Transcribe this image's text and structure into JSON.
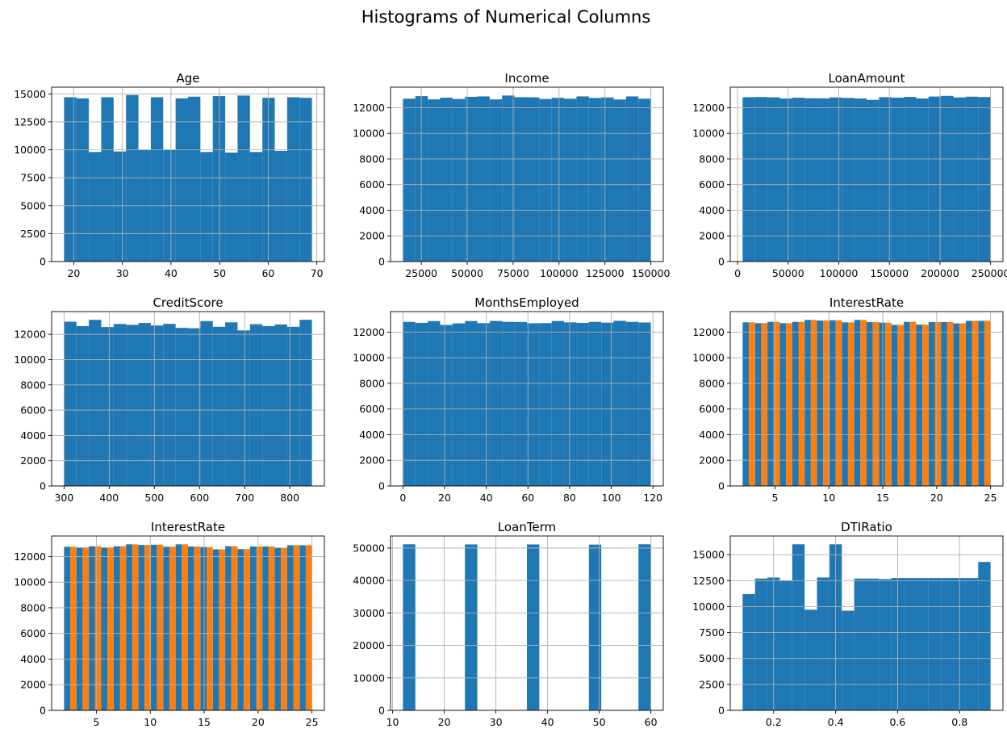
{
  "figure": {
    "title": "Histograms of Numerical Columns"
  },
  "colors": {
    "blue": "#1f77b4",
    "orange": "#ff7f0e",
    "grid": "#b0b0b0"
  },
  "chart_data": [
    {
      "type": "bar",
      "title": "Age",
      "xlim": [
        15.45,
        71.55
      ],
      "ylim": [
        0,
        15600
      ],
      "xticks": [
        20,
        30,
        40,
        50,
        60,
        70
      ],
      "yticks": [
        0,
        2500,
        5000,
        7500,
        10000,
        12500,
        15000
      ],
      "grid": true,
      "series": [
        {
          "color": "#1f77b4",
          "bar_width": 2.55,
          "x": [
            18,
            20.55,
            23.1,
            25.65,
            28.2,
            30.75,
            33.3,
            35.85,
            38.4,
            40.95,
            43.5,
            46.05,
            48.6,
            51.15,
            53.7,
            56.25,
            58.8,
            61.35,
            63.9,
            66.45
          ],
          "values": [
            14700,
            14600,
            9800,
            14700,
            9850,
            14900,
            10000,
            14700,
            10000,
            14600,
            14750,
            9800,
            14800,
            9750,
            14850,
            9800,
            14650,
            9900,
            14700,
            14650
          ]
        }
      ]
    },
    {
      "type": "bar",
      "title": "Income",
      "xlim": [
        8250,
        156750
      ],
      "ylim": [
        0,
        13600
      ],
      "xticks": [
        25000,
        50000,
        75000,
        100000,
        125000,
        150000
      ],
      "yticks": [
        0,
        2000,
        4000,
        6000,
        8000,
        10000,
        12000
      ],
      "grid": true,
      "series": [
        {
          "color": "#1f77b4",
          "bar_width": 6750,
          "x": [
            15000,
            21750,
            28500,
            35250,
            42000,
            48750,
            55500,
            62250,
            69000,
            75750,
            82500,
            89250,
            96000,
            102750,
            109500,
            116250,
            123000,
            129750,
            136500,
            143250
          ],
          "values": [
            12700,
            12900,
            12650,
            12780,
            12680,
            12850,
            12880,
            12650,
            12950,
            12820,
            12810,
            12680,
            12770,
            12700,
            12880,
            12760,
            12800,
            12640,
            12880,
            12700
          ]
        }
      ]
    },
    {
      "type": "bar",
      "title": "LoanAmount",
      "xlim": [
        -7250,
        262250
      ],
      "ylim": [
        0,
        13600
      ],
      "xticks": [
        0,
        50000,
        100000,
        150000,
        200000,
        250000
      ],
      "yticks": [
        0,
        2000,
        4000,
        6000,
        8000,
        10000,
        12000
      ],
      "grid": true,
      "series": [
        {
          "color": "#1f77b4",
          "bar_width": 12250,
          "x": [
            5000,
            17250,
            29500,
            41750,
            54000,
            66250,
            78500,
            90750,
            103000,
            115250,
            127500,
            139750,
            152000,
            164250,
            176500,
            188750,
            201000,
            213250,
            225500,
            237750
          ],
          "values": [
            12820,
            12830,
            12810,
            12720,
            12780,
            12740,
            12730,
            12800,
            12760,
            12720,
            12610,
            12820,
            12780,
            12840,
            12720,
            12870,
            12920,
            12800,
            12860,
            12830
          ]
        }
      ]
    },
    {
      "type": "bar",
      "title": "CreditScore",
      "xlim": [
        272.5,
        876.5
      ],
      "ylim": [
        0,
        13800
      ],
      "xticks": [
        300,
        400,
        500,
        600,
        700,
        800
      ],
      "yticks": [
        0,
        2000,
        4000,
        6000,
        8000,
        10000,
        12000
      ],
      "grid": true,
      "series": [
        {
          "color": "#1f77b4",
          "bar_width": 27.45,
          "x": [
            300,
            327.45,
            354.9,
            382.35,
            409.8,
            437.25,
            464.7,
            492.15,
            519.6,
            547.05,
            574.5,
            601.95,
            629.4,
            656.85,
            684.3,
            711.75,
            739.2,
            766.65,
            794.1,
            821.55
          ],
          "values": [
            13000,
            12650,
            13150,
            12580,
            12820,
            12750,
            12900,
            12700,
            12830,
            12510,
            12480,
            13050,
            12600,
            12950,
            12310,
            12800,
            12650,
            12780,
            12600,
            13150
          ]
        }
      ]
    },
    {
      "type": "bar",
      "title": "MonthsEmployed",
      "xlim": [
        -5.95,
        124.95
      ],
      "ylim": [
        0,
        13600
      ],
      "xticks": [
        0,
        20,
        40,
        60,
        80,
        100,
        120
      ],
      "yticks": [
        0,
        2000,
        4000,
        6000,
        8000,
        10000,
        12000
      ],
      "grid": true,
      "series": [
        {
          "color": "#1f77b4",
          "bar_width": 5.95,
          "x": [
            0,
            5.95,
            11.9,
            17.85,
            23.8,
            29.75,
            35.7,
            41.65,
            47.6,
            53.55,
            59.5,
            65.45,
            71.4,
            77.35,
            83.3,
            89.25,
            95.2,
            101.15,
            107.1,
            113.05
          ],
          "values": [
            12800,
            12720,
            12860,
            12560,
            12680,
            12860,
            12700,
            12870,
            12800,
            12790,
            12690,
            12700,
            12870,
            12760,
            12720,
            12800,
            12740,
            12880,
            12800,
            12750
          ]
        }
      ]
    },
    {
      "type": "bar",
      "title": "InterestRate",
      "xlim": [
        0.85,
        26.15
      ],
      "ylim": [
        0,
        13600
      ],
      "xticks": [
        5,
        10,
        15,
        20,
        25
      ],
      "yticks": [
        0,
        2000,
        4000,
        6000,
        8000,
        10000,
        12000
      ],
      "grid": true,
      "series": [
        {
          "color": "#1f77b4",
          "bar_width": 0.575,
          "x": [
            2,
            3.15,
            4.3,
            5.45,
            6.6,
            7.75,
            8.9,
            10.05,
            11.2,
            12.35,
            13.5,
            14.65,
            15.8,
            16.95,
            18.1,
            19.25,
            20.4,
            21.55,
            22.7,
            23.85
          ],
          "values": [
            12760,
            12700,
            12800,
            12700,
            12800,
            12950,
            12900,
            12920,
            12760,
            12950,
            12780,
            12740,
            12560,
            12800,
            12580,
            12780,
            12780,
            12680,
            12880,
            12880
          ]
        },
        {
          "color": "#ff7f0e",
          "bar_width": 0.575,
          "x": [
            2.575,
            3.725,
            4.875,
            6.025,
            7.175,
            8.325,
            9.475,
            10.625,
            11.775,
            12.925,
            14.075,
            15.225,
            16.375,
            17.525,
            18.675,
            19.825,
            20.975,
            22.125,
            23.275,
            24.425
          ],
          "values": [
            12760,
            12700,
            12800,
            12700,
            12800,
            12950,
            12900,
            12920,
            12760,
            12950,
            12780,
            12740,
            12560,
            12800,
            12580,
            12780,
            12780,
            12680,
            12880,
            12880
          ]
        }
      ]
    },
    {
      "type": "bar",
      "title": "InterestRate",
      "xlim": [
        0.85,
        26.15
      ],
      "ylim": [
        0,
        13600
      ],
      "xticks": [
        5,
        10,
        15,
        20,
        25
      ],
      "yticks": [
        0,
        2000,
        4000,
        6000,
        8000,
        10000,
        12000
      ],
      "grid": true,
      "series": [
        {
          "color": "#1f77b4",
          "bar_width": 0.575,
          "x": [
            2,
            3.15,
            4.3,
            5.45,
            6.6,
            7.75,
            8.9,
            10.05,
            11.2,
            12.35,
            13.5,
            14.65,
            15.8,
            16.95,
            18.1,
            19.25,
            20.4,
            21.55,
            22.7,
            23.85
          ],
          "values": [
            12760,
            12700,
            12800,
            12700,
            12800,
            12950,
            12900,
            12920,
            12760,
            12950,
            12780,
            12740,
            12560,
            12800,
            12580,
            12780,
            12780,
            12680,
            12880,
            12880
          ]
        },
        {
          "color": "#ff7f0e",
          "bar_width": 0.575,
          "x": [
            2.575,
            3.725,
            4.875,
            6.025,
            7.175,
            8.325,
            9.475,
            10.625,
            11.775,
            12.925,
            14.075,
            15.225,
            16.375,
            17.525,
            18.675,
            19.825,
            20.975,
            22.125,
            23.275,
            24.425
          ],
          "values": [
            12760,
            12700,
            12800,
            12700,
            12800,
            12950,
            12900,
            12920,
            12760,
            12950,
            12780,
            12740,
            12560,
            12800,
            12580,
            12780,
            12780,
            12680,
            12880,
            12880
          ]
        }
      ]
    },
    {
      "type": "bar",
      "title": "LoanTerm",
      "xlim": [
        9.6,
        62.4
      ],
      "ylim": [
        0,
        53700
      ],
      "xticks": [
        10,
        20,
        30,
        40,
        50,
        60
      ],
      "yticks": [
        0,
        10000,
        20000,
        30000,
        40000,
        50000
      ],
      "grid": true,
      "series": [
        {
          "color": "#1f77b4",
          "bar_width": 2.4,
          "x": [
            12,
            24,
            36,
            48,
            57.6
          ],
          "values": [
            51150,
            51100,
            51100,
            51050,
            51150
          ]
        }
      ]
    },
    {
      "type": "bar",
      "title": "DTIRatio",
      "xlim": [
        0.06,
        0.94
      ],
      "ylim": [
        0,
        16800
      ],
      "xticks": [
        0.2,
        0.4,
        0.6,
        0.8
      ],
      "yticks": [
        0,
        2500,
        5000,
        7500,
        10000,
        12500,
        15000
      ],
      "grid": true,
      "series": [
        {
          "color": "#1f77b4",
          "bar_width": 0.04,
          "x": [
            0.1,
            0.14,
            0.18,
            0.22,
            0.26,
            0.3,
            0.34,
            0.38,
            0.42,
            0.46,
            0.5,
            0.54,
            0.58,
            0.62,
            0.66,
            0.7,
            0.74,
            0.78,
            0.82,
            0.86
          ],
          "values": [
            11200,
            12700,
            12800,
            12500,
            16000,
            9700,
            12800,
            16000,
            9600,
            12700,
            12700,
            12650,
            12750,
            12750,
            12750,
            12750,
            12750,
            12750,
            12750,
            14300
          ]
        }
      ]
    }
  ]
}
